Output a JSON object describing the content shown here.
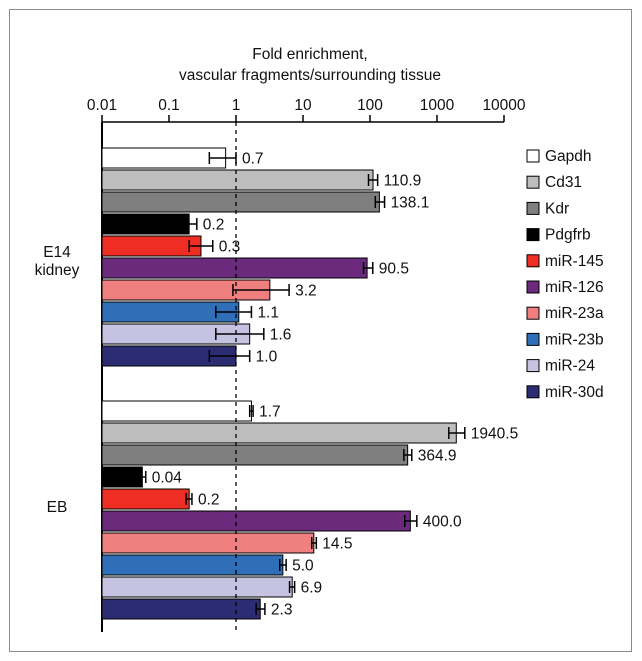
{
  "chart_data": {
    "type": "bar",
    "orientation": "horizontal",
    "scale": "log",
    "title_line1": "Fold enrichment,",
    "title_line2": "vascular fragments/surrounding tissue",
    "x_ticks": [
      "0.01",
      "0.1",
      "1",
      "10",
      "100",
      "1000",
      "10000"
    ],
    "xlim": [
      0.01,
      10000
    ],
    "reference_line": 1,
    "legend_position": "right",
    "groups": [
      {
        "label_line1": "E14",
        "label_line2": "kidney"
      },
      {
        "label_line1": "EB",
        "label_line2": ""
      }
    ],
    "series": [
      {
        "name": "Gapdh",
        "color": "#ffffff",
        "values": [
          0.7,
          1.7
        ],
        "labels": [
          "0.7",
          "1.7"
        ],
        "err_low": [
          0.4,
          1.6
        ],
        "err_high": [
          1.0,
          1.8
        ]
      },
      {
        "name": "Cd31",
        "color": "#bdbdbd",
        "values": [
          110.9,
          1940.5
        ],
        "labels": [
          "110.9",
          "1940.5"
        ],
        "err_low": [
          95,
          1500
        ],
        "err_high": [
          130,
          2600
        ]
      },
      {
        "name": "Kdr",
        "color": "#7f7f7f",
        "values": [
          138.1,
          364.9
        ],
        "labels": [
          "138.1",
          "364.9"
        ],
        "err_low": [
          120,
          320
        ],
        "err_high": [
          165,
          420
        ]
      },
      {
        "name": "Pdgfrb",
        "color": "#000000",
        "values": [
          0.2,
          0.04
        ],
        "labels": [
          "0.2",
          "0.04"
        ],
        "err_low": [
          0.16,
          0.035
        ],
        "err_high": [
          0.26,
          0.045
        ]
      },
      {
        "name": "miR-145",
        "color": "#ee2e24",
        "values": [
          0.3,
          0.2
        ],
        "labels": [
          "0.3",
          "0.2"
        ],
        "err_low": [
          0.2,
          0.18
        ],
        "err_high": [
          0.45,
          0.22
        ]
      },
      {
        "name": "miR-126",
        "color": "#6b2a7c",
        "values": [
          90.5,
          400.0
        ],
        "labels": [
          "90.5",
          "400.0"
        ],
        "err_low": [
          80,
          330
        ],
        "err_high": [
          110,
          500
        ]
      },
      {
        "name": "miR-23a",
        "color": "#f08080",
        "values": [
          3.2,
          14.5
        ],
        "labels": [
          "3.2",
          "14.5"
        ],
        "err_low": [
          0.9,
          13.5
        ],
        "err_high": [
          6.2,
          15.8
        ]
      },
      {
        "name": "miR-23b",
        "color": "#2e6fb8",
        "values": [
          1.1,
          5.0
        ],
        "labels": [
          "1.1",
          "5.0"
        ],
        "err_low": [
          0.5,
          4.5
        ],
        "err_high": [
          1.7,
          5.6
        ]
      },
      {
        "name": "miR-24",
        "color": "#c6c3e2",
        "values": [
          1.6,
          6.9
        ],
        "labels": [
          "1.6",
          "6.9"
        ],
        "err_low": [
          0.5,
          6.3
        ],
        "err_high": [
          2.6,
          7.5
        ]
      },
      {
        "name": "miR-30d",
        "color": "#2c2c72",
        "values": [
          1.0,
          2.3
        ],
        "labels": [
          "1.0",
          "2.3"
        ],
        "err_low": [
          0.4,
          2.0
        ],
        "err_high": [
          1.6,
          2.7
        ]
      }
    ]
  }
}
